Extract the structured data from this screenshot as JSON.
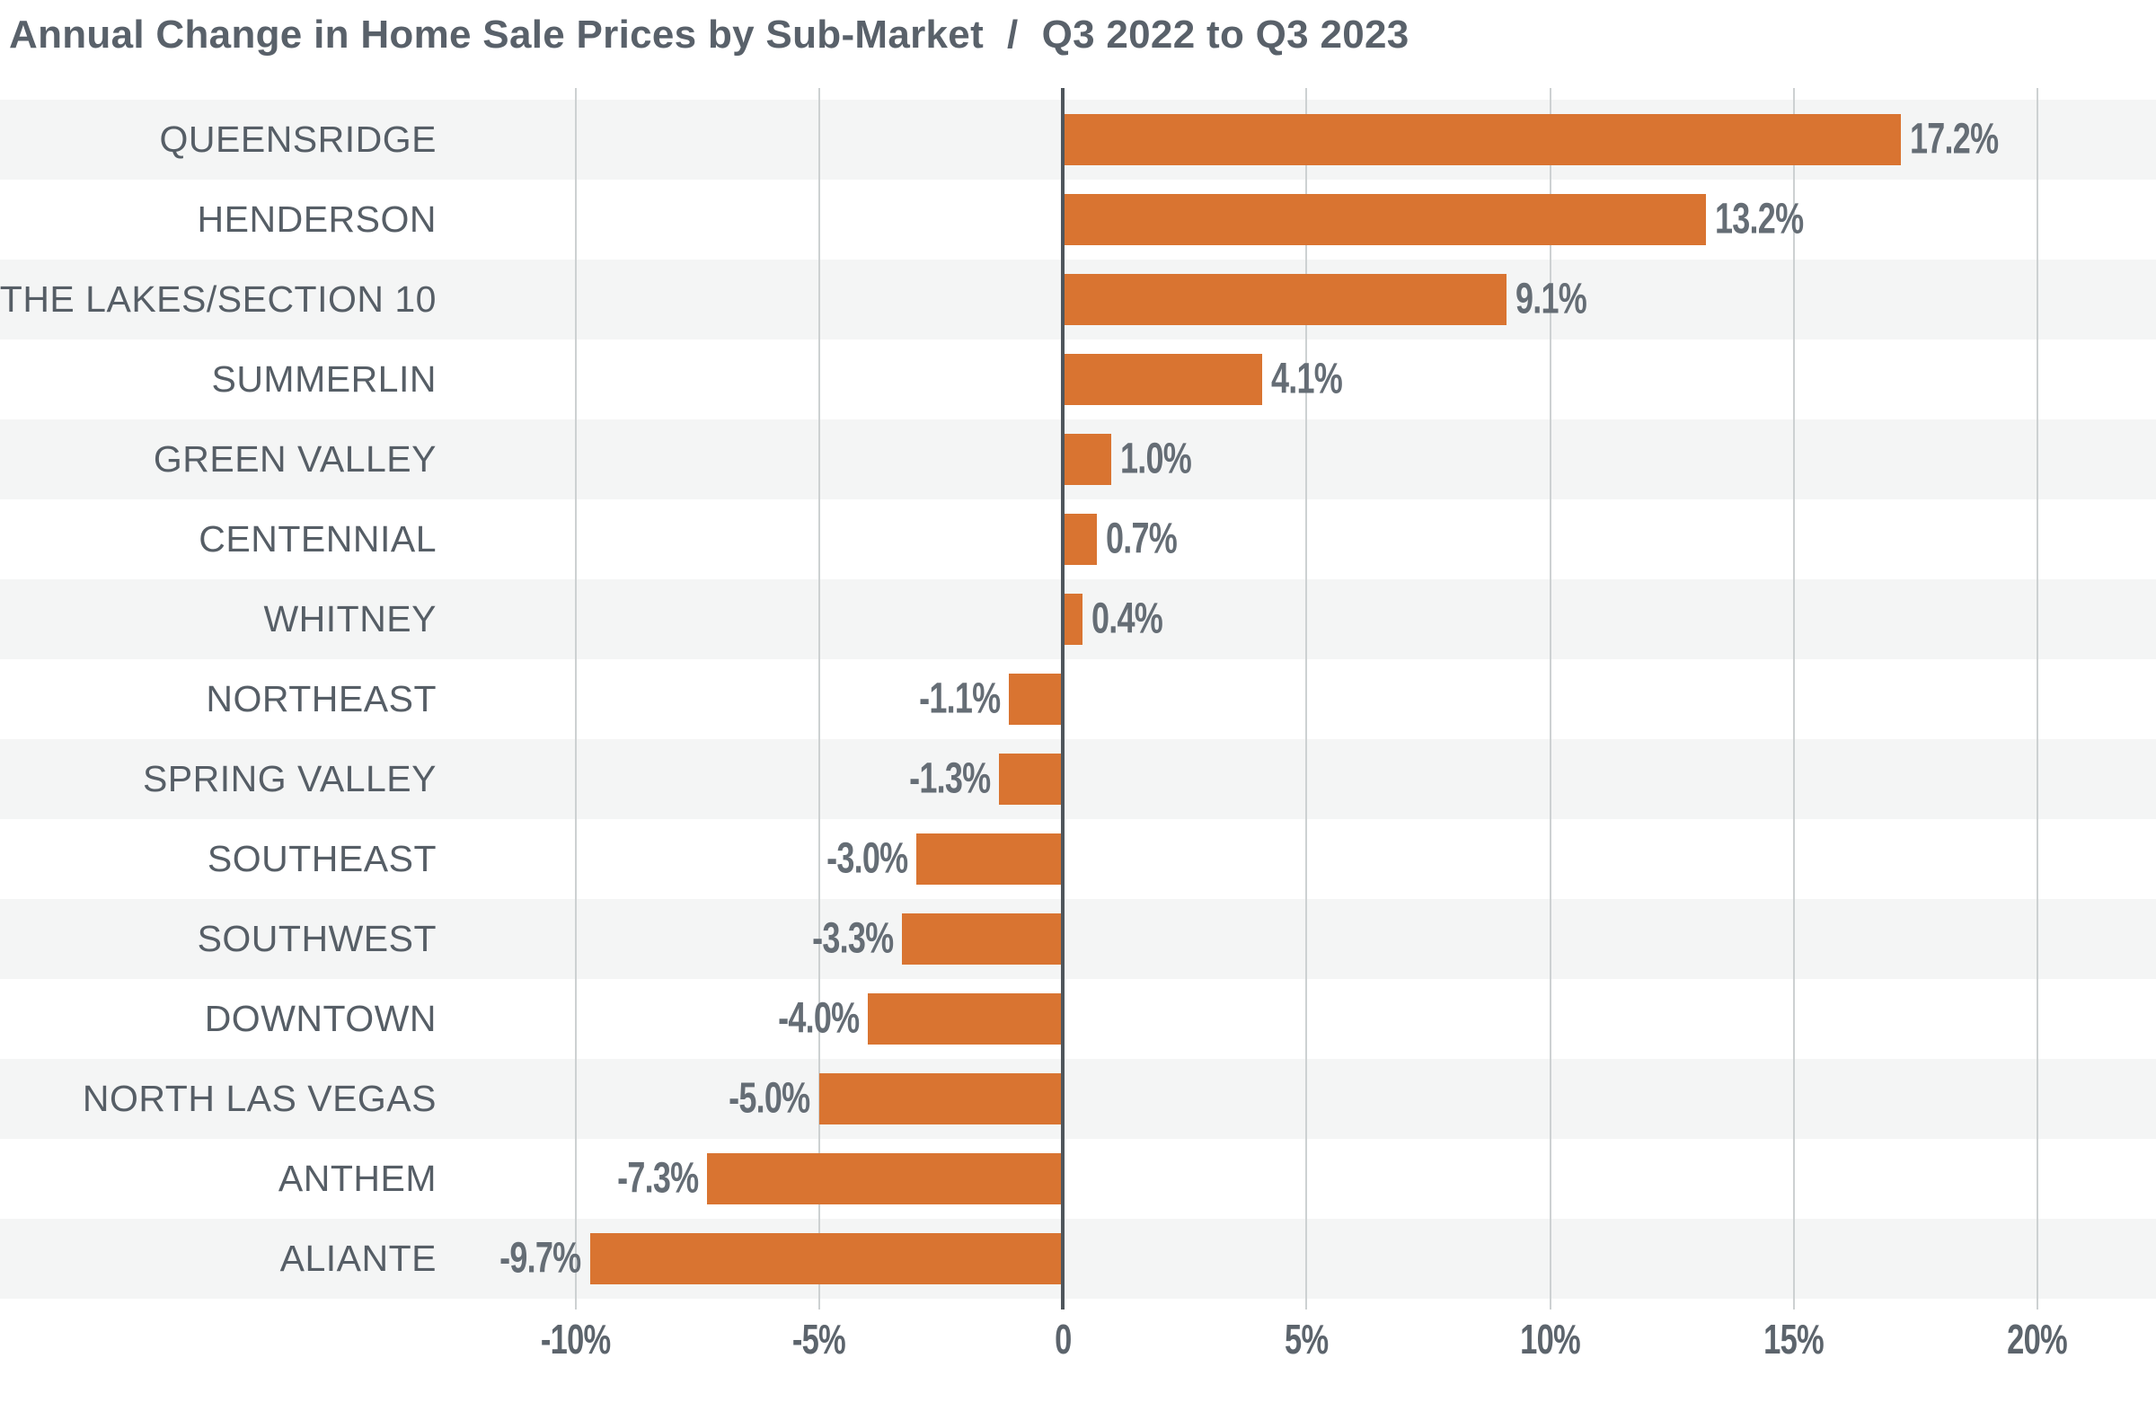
{
  "title": {
    "main": "Annual Change in Home Sale Prices by Sub-Market",
    "separator": "/",
    "subtitle": "Q3 2022 to Q3 2023"
  },
  "chart_data": {
    "type": "bar",
    "orientation": "horizontal",
    "title": "Annual Change in Home Sale Prices by Sub-Market",
    "subtitle": "Q3 2022 to Q3 2023",
    "categories": [
      "QUEENSRIDGE",
      "HENDERSON",
      "THE LAKES/SECTION 10",
      "SUMMERLIN",
      "GREEN VALLEY",
      "CENTENNIAL",
      "WHITNEY",
      "NORTHEAST",
      "SPRING VALLEY",
      "SOUTHEAST",
      "SOUTHWEST",
      "DOWNTOWN",
      "NORTH LAS VEGAS",
      "ANTHEM",
      "ALIANTE"
    ],
    "values": [
      17.2,
      13.2,
      9.1,
      4.1,
      1.0,
      0.7,
      0.4,
      -1.1,
      -1.3,
      -3.0,
      -3.3,
      -4.0,
      -5.0,
      -7.3,
      -9.7
    ],
    "value_labels": [
      "17.2%",
      "13.2%",
      "9.1%",
      "4.1%",
      "1.0%",
      "0.7%",
      "0.4%",
      "-1.1%",
      "-1.3%",
      "-3.0%",
      "-3.3%",
      "-4.0%",
      "-5.0%",
      "-7.3%",
      "-9.7%"
    ],
    "x_ticks": [
      {
        "v": -10,
        "label": "-10%"
      },
      {
        "v": -5,
        "label": "-5%"
      },
      {
        "v": 0,
        "label": "0"
      },
      {
        "v": 5,
        "label": "5%"
      },
      {
        "v": 10,
        "label": "10%"
      },
      {
        "v": 15,
        "label": "15%"
      },
      {
        "v": 20,
        "label": "20%"
      }
    ],
    "xlim": [
      -21.8,
      22.4
    ],
    "grid": true,
    "legend_position": "none",
    "row_striping": "odd-rows-shaded",
    "colors": {
      "bar": "#d97431",
      "row_stripe": "#f4f5f5",
      "row_plain": "#ffffff",
      "gridline": "#cdd1d2",
      "zero_line": "#4f565c",
      "category_text": "#565e66",
      "value_text": "#656d75",
      "axis_text": "#5c646c",
      "title_text": "#59616a"
    }
  }
}
